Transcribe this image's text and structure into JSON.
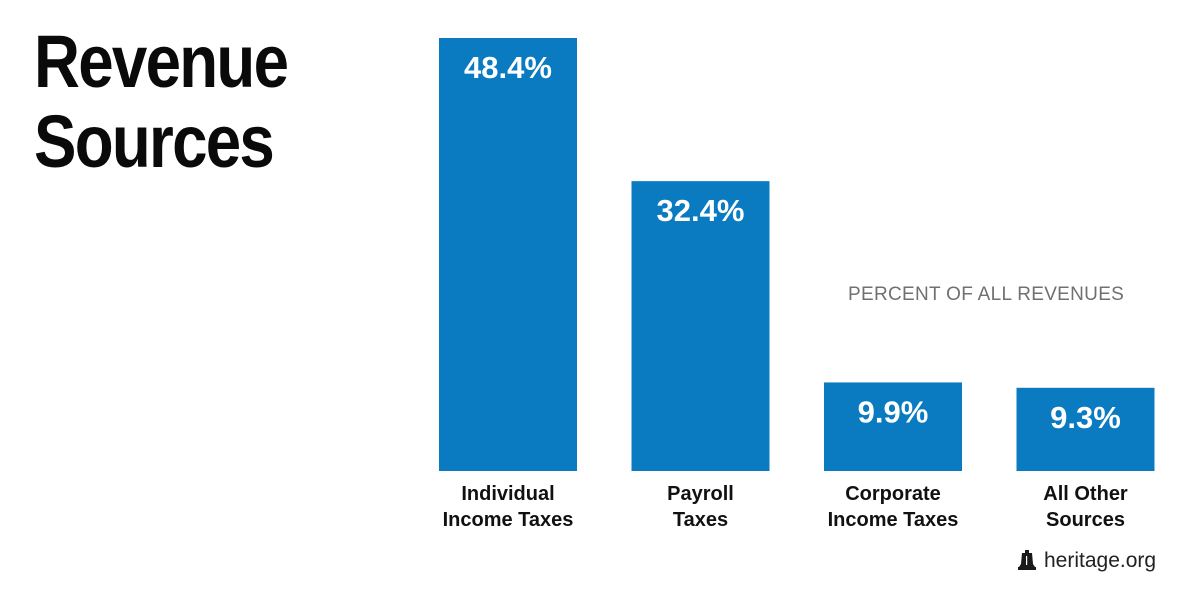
{
  "chart_data": {
    "type": "bar",
    "title": "Revenue\nSources",
    "subtitle": "PERCENT OF ALL REVENUES",
    "categories": [
      [
        "Individual",
        "Income Taxes"
      ],
      [
        "Payroll",
        "Taxes"
      ],
      [
        "Corporate",
        "Income Taxes"
      ],
      [
        "All Other",
        "Sources"
      ]
    ],
    "values": [
      48.4,
      32.4,
      9.9,
      9.3
    ],
    "value_labels": [
      "48.4%",
      "32.4%",
      "9.9%",
      "9.3%"
    ],
    "bar_color": "#0a7bc1",
    "grid": false,
    "legend": "none"
  },
  "footer": {
    "source": "heritage.org",
    "icon": "liberty-bell-icon"
  }
}
